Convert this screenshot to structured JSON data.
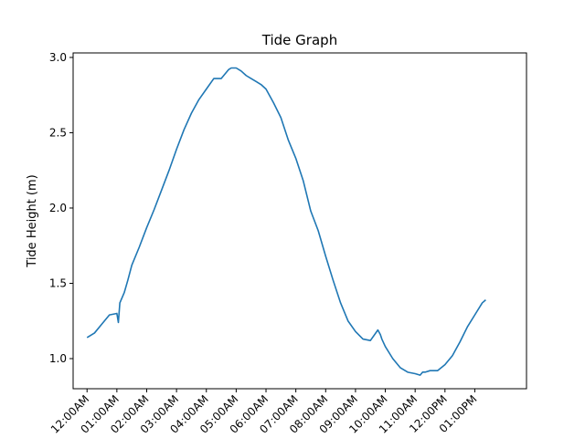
{
  "chart_data": {
    "type": "line",
    "title": "Tide Graph",
    "xlabel": "",
    "ylabel": "Tide Height (m)",
    "grid": false,
    "legend": "none",
    "line_color": "#1f77b4",
    "x_ticks": [
      "12:00AM",
      "01:00AM",
      "02:00AM",
      "03:00AM",
      "04:00AM",
      "05:00AM",
      "06:00AM",
      "07:00AM",
      "08:00AM",
      "09:00AM",
      "10:00AM",
      "11:00AM",
      "12:00PM",
      "01:00PM"
    ],
    "y_ticks": [
      "1.0",
      "1.5",
      "2.0",
      "2.5",
      "3.0"
    ],
    "xlim": [
      "11:32PM",
      "02:44PM"
    ],
    "ylim": [
      0.8,
      3.03
    ],
    "series": [
      {
        "x": [
          "12:00AM",
          "12:15AM",
          "12:30AM",
          "12:45AM",
          "01:00AM",
          "01:03AM",
          "01:06AM",
          "01:15AM",
          "01:22AM",
          "01:30AM",
          "01:45AM",
          "02:00AM",
          "02:15AM",
          "02:30AM",
          "02:45AM",
          "03:00AM",
          "03:15AM",
          "03:30AM",
          "03:45AM",
          "04:00AM",
          "04:15AM",
          "04:30AM",
          "04:45AM",
          "04:50AM",
          "04:55AM",
          "05:00AM",
          "05:10AM",
          "05:20AM",
          "05:30AM",
          "05:40AM",
          "05:50AM",
          "06:00AM",
          "06:15AM",
          "06:30AM",
          "06:45AM",
          "07:00AM",
          "07:15AM",
          "07:30AM",
          "07:45AM",
          "08:00AM",
          "08:15AM",
          "08:30AM",
          "08:45AM",
          "09:00AM",
          "09:15AM",
          "09:30AM",
          "09:45AM",
          "09:50AM",
          "09:53AM",
          "10:00AM",
          "10:15AM",
          "10:30AM",
          "10:45AM",
          "11:00AM",
          "11:10AM",
          "11:15AM",
          "11:20AM",
          "11:30AM",
          "11:45AM",
          "12:00PM",
          "12:15PM",
          "12:30PM",
          "12:45PM",
          "01:00PM",
          "01:15PM",
          "01:22PM"
        ],
        "y": [
          1.14,
          1.17,
          1.23,
          1.29,
          1.3,
          1.24,
          1.37,
          1.44,
          1.52,
          1.62,
          1.74,
          1.87,
          1.99,
          2.12,
          2.25,
          2.39,
          2.52,
          2.63,
          2.72,
          2.79,
          2.86,
          2.86,
          2.92,
          2.93,
          2.93,
          2.93,
          2.91,
          2.88,
          2.86,
          2.84,
          2.82,
          2.79,
          2.7,
          2.6,
          2.45,
          2.33,
          2.18,
          1.98,
          1.85,
          1.68,
          1.52,
          1.37,
          1.25,
          1.18,
          1.13,
          1.12,
          1.19,
          1.16,
          1.13,
          1.08,
          1.0,
          0.94,
          0.91,
          0.9,
          0.89,
          0.91,
          0.91,
          0.92,
          0.92,
          0.96,
          1.02,
          1.11,
          1.21,
          1.29,
          1.37,
          1.39
        ]
      }
    ]
  }
}
